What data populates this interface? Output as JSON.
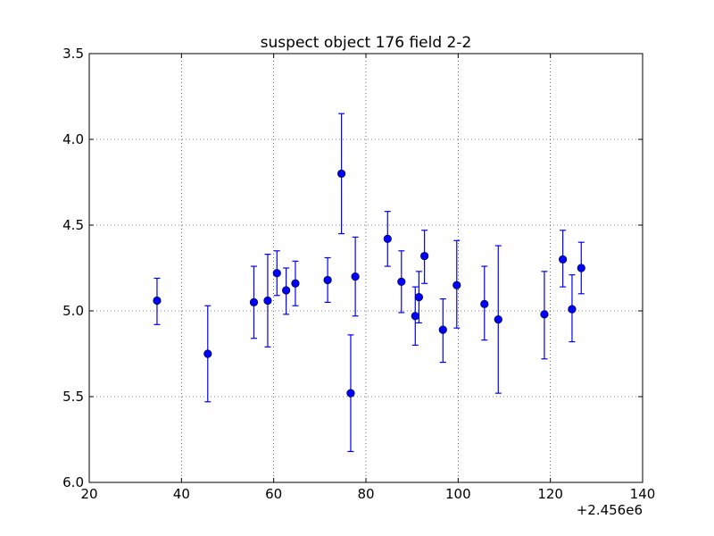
{
  "chart_data": {
    "type": "scatter",
    "title": "suspect object 176 field 2-2",
    "xlabel": "",
    "ylabel": "",
    "x_offset_label": "+2.456e6",
    "xlim": [
      20,
      140
    ],
    "ylim": [
      6.0,
      3.5
    ],
    "y_inverted": true,
    "x_ticks": [
      20,
      40,
      60,
      80,
      100,
      120,
      140
    ],
    "y_ticks": [
      3.5,
      4.0,
      4.5,
      5.0,
      5.5,
      6.0
    ],
    "x_tick_labels": [
      "20",
      "40",
      "60",
      "80",
      "100",
      "120",
      "140"
    ],
    "y_tick_labels": [
      "3.5",
      "4.0",
      "4.5",
      "5.0",
      "5.5",
      "6.0"
    ],
    "grid": true,
    "legend": "none",
    "marker_color": "#0000ff",
    "errorbar_color": "#0000ff",
    "series": [
      {
        "points": [
          {
            "x": 34.7,
            "y": 4.94,
            "yerr_low": 4.81,
            "yerr_high": 5.08
          },
          {
            "x": 45.7,
            "y": 5.25,
            "yerr_low": 4.97,
            "yerr_high": 5.53
          },
          {
            "x": 55.7,
            "y": 4.95,
            "yerr_low": 4.74,
            "yerr_high": 5.16
          },
          {
            "x": 58.7,
            "y": 4.94,
            "yerr_low": 4.67,
            "yerr_high": 5.21
          },
          {
            "x": 60.7,
            "y": 4.78,
            "yerr_low": 4.65,
            "yerr_high": 4.91
          },
          {
            "x": 62.7,
            "y": 4.88,
            "yerr_low": 4.75,
            "yerr_high": 5.02
          },
          {
            "x": 64.7,
            "y": 4.84,
            "yerr_low": 4.71,
            "yerr_high": 4.97
          },
          {
            "x": 71.7,
            "y": 4.82,
            "yerr_low": 4.69,
            "yerr_high": 4.95
          },
          {
            "x": 74.7,
            "y": 4.2,
            "yerr_low": 3.85,
            "yerr_high": 4.55
          },
          {
            "x": 76.7,
            "y": 5.48,
            "yerr_low": 5.14,
            "yerr_high": 5.82
          },
          {
            "x": 77.7,
            "y": 4.8,
            "yerr_low": 4.57,
            "yerr_high": 5.03
          },
          {
            "x": 84.7,
            "y": 4.58,
            "yerr_low": 4.42,
            "yerr_high": 4.74
          },
          {
            "x": 87.7,
            "y": 4.83,
            "yerr_low": 4.65,
            "yerr_high": 5.01
          },
          {
            "x": 90.7,
            "y": 5.03,
            "yerr_low": 4.86,
            "yerr_high": 5.2
          },
          {
            "x": 91.5,
            "y": 4.92,
            "yerr_low": 4.77,
            "yerr_high": 5.07
          },
          {
            "x": 92.7,
            "y": 4.68,
            "yerr_low": 4.53,
            "yerr_high": 4.84
          },
          {
            "x": 96.7,
            "y": 5.11,
            "yerr_low": 4.93,
            "yerr_high": 5.3
          },
          {
            "x": 99.7,
            "y": 4.85,
            "yerr_low": 4.59,
            "yerr_high": 5.1
          },
          {
            "x": 105.7,
            "y": 4.96,
            "yerr_low": 4.74,
            "yerr_high": 5.17
          },
          {
            "x": 108.7,
            "y": 5.05,
            "yerr_low": 4.62,
            "yerr_high": 5.48
          },
          {
            "x": 118.7,
            "y": 5.02,
            "yerr_low": 4.77,
            "yerr_high": 5.28
          },
          {
            "x": 122.7,
            "y": 4.7,
            "yerr_low": 4.53,
            "yerr_high": 4.86
          },
          {
            "x": 124.7,
            "y": 4.99,
            "yerr_low": 4.79,
            "yerr_high": 5.18
          },
          {
            "x": 126.7,
            "y": 4.75,
            "yerr_low": 4.6,
            "yerr_high": 4.9
          }
        ]
      }
    ]
  }
}
